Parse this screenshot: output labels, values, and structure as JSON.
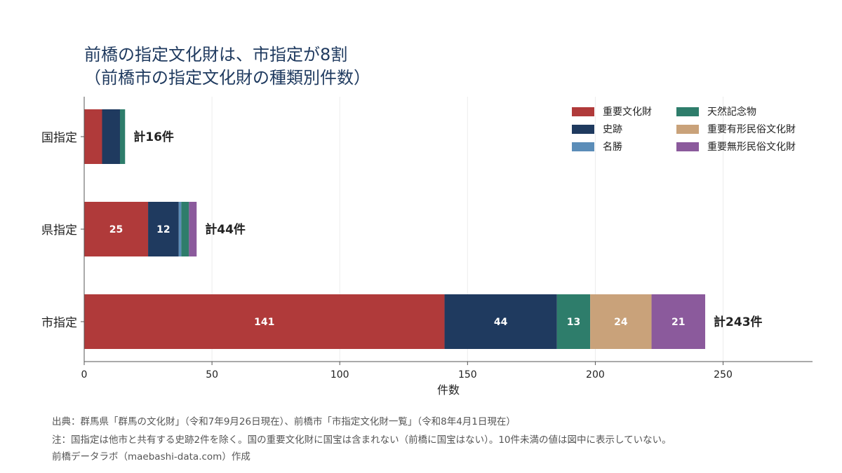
{
  "title": "前橋の指定文化財は、市指定が8割",
  "subtitle": "（前橋市の指定文化財の種類別件数）",
  "footer": {
    "source": "出典：群馬県「群馬の文化財」（令和7年9月26日現在）、前橋市「市指定文化財一覧」（令和8年4月1日現在）",
    "note": "注：国指定は他市と共有する史跡2件を除く。国の重要文化財に国宝は含まれない（前橋に国宝はない）。10件未満の値は図中に表示していない。",
    "credit": "前橋データラボ（maebashi-data.com）作成"
  },
  "chart_data": {
    "type": "bar",
    "orientation": "horizontal",
    "stacked": true,
    "categories": [
      "国指定",
      "県指定",
      "市指定"
    ],
    "series": [
      {
        "name": "重要文化財",
        "color": "#b03a3a",
        "values": [
          7,
          25,
          141
        ]
      },
      {
        "name": "史跡",
        "color": "#1f3a5f",
        "values": [
          7,
          12,
          44
        ]
      },
      {
        "name": "名勝",
        "color": "#5b8db8",
        "values": [
          0,
          1,
          0
        ]
      },
      {
        "name": "天然記念物",
        "color": "#2e7d6b",
        "values": [
          2,
          3,
          13
        ]
      },
      {
        "name": "重要有形民俗文化財",
        "color": "#c9a27a",
        "values": [
          0,
          0,
          24
        ]
      },
      {
        "name": "重要無形民俗文化財",
        "color": "#8b5a9c",
        "values": [
          0,
          3,
          21
        ]
      }
    ],
    "totals": [
      16,
      44,
      243
    ],
    "total_labels": [
      "計16件",
      "計44件",
      "計243件"
    ],
    "label_threshold": 10,
    "xlabel": "件数",
    "ylabel": "",
    "xlim": [
      0,
      285
    ],
    "xticks": [
      0,
      50,
      100,
      150,
      200,
      250
    ],
    "grid": "vertical",
    "legend": "top-right"
  }
}
